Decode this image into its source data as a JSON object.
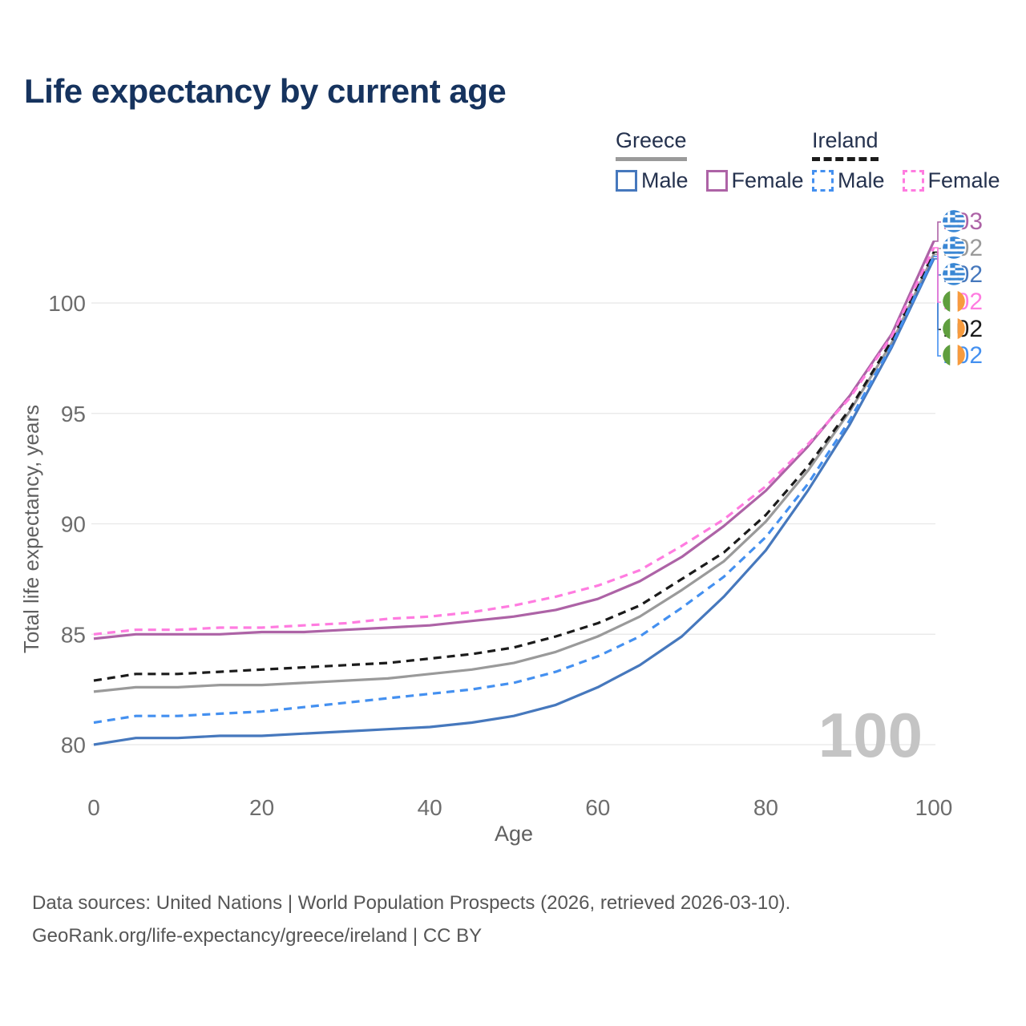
{
  "header": {
    "title": "Life expectancy by current age"
  },
  "legend": {
    "groups": [
      {
        "country": "Greece",
        "items": [
          {
            "label": "Male",
            "series": "Greece Male"
          },
          {
            "label": "Female",
            "series": "Greece Female"
          }
        ]
      },
      {
        "country": "Ireland",
        "items": [
          {
            "label": "Male",
            "series": "Ireland Male"
          },
          {
            "label": "Female",
            "series": "Ireland Female"
          }
        ]
      }
    ]
  },
  "chart_data": {
    "type": "line",
    "title": "Life expectancy by current age",
    "xlabel": "Age",
    "ylabel": "Total life expectancy, years",
    "x_ticks": [
      0,
      20,
      40,
      60,
      80,
      100
    ],
    "y_ticks": [
      80,
      85,
      90,
      95,
      100
    ],
    "xlim": [
      0,
      100
    ],
    "ylim": [
      80,
      103.5
    ],
    "grid": "horizontal",
    "gridline_color": "#e7e7e7",
    "axis_text_color": "#6d6d6d",
    "watermark_age": "100",
    "x": [
      0,
      5,
      10,
      15,
      20,
      25,
      30,
      35,
      40,
      45,
      50,
      55,
      60,
      65,
      70,
      75,
      80,
      85,
      90,
      95,
      100
    ],
    "series": [
      {
        "name": "Greece Total",
        "country": "Greece",
        "sex": "Total",
        "style": "solid",
        "color": "#9a9a9a",
        "end_label": "102",
        "label_row": 1,
        "values": [
          82.4,
          82.6,
          82.6,
          82.7,
          82.7,
          82.8,
          82.9,
          83.0,
          83.2,
          83.4,
          83.7,
          84.2,
          84.9,
          85.8,
          87.0,
          88.3,
          90.1,
          92.4,
          95.1,
          98.2,
          102.2
        ]
      },
      {
        "name": "Greece Male",
        "country": "Greece",
        "sex": "Male",
        "style": "solid",
        "color": "#4678bd",
        "end_label": "102",
        "label_row": 2,
        "values": [
          80.0,
          80.3,
          80.3,
          80.4,
          80.4,
          80.5,
          80.6,
          80.7,
          80.8,
          81.0,
          81.3,
          81.8,
          82.6,
          83.6,
          84.9,
          86.7,
          88.8,
          91.5,
          94.5,
          98.0,
          102.0
        ]
      },
      {
        "name": "Greece Female",
        "country": "Greece",
        "sex": "Female",
        "style": "solid",
        "color": "#ad63a6",
        "end_label": "103",
        "label_row": 0,
        "values": [
          84.8,
          85.0,
          85.0,
          85.0,
          85.1,
          85.1,
          85.2,
          85.3,
          85.4,
          85.6,
          85.8,
          86.1,
          86.6,
          87.4,
          88.5,
          89.9,
          91.5,
          93.5,
          95.8,
          98.6,
          102.8
        ]
      },
      {
        "name": "Ireland Total",
        "country": "Ireland",
        "sex": "Total",
        "style": "dashed",
        "color": "#1b1b1b",
        "end_label": "102",
        "label_row": 4,
        "values": [
          82.9,
          83.2,
          83.2,
          83.3,
          83.4,
          83.5,
          83.6,
          83.7,
          83.9,
          84.1,
          84.4,
          84.9,
          85.5,
          86.3,
          87.5,
          88.7,
          90.4,
          92.6,
          95.2,
          98.3,
          102.3
        ]
      },
      {
        "name": "Ireland Male",
        "country": "Ireland",
        "sex": "Male",
        "style": "dashed",
        "color": "#4490f0",
        "end_label": "102",
        "label_row": 5,
        "values": [
          81.0,
          81.3,
          81.3,
          81.4,
          81.5,
          81.7,
          81.9,
          82.1,
          82.3,
          82.5,
          82.8,
          83.3,
          84.0,
          84.9,
          86.2,
          87.6,
          89.4,
          91.8,
          94.7,
          98.1,
          102.1
        ]
      },
      {
        "name": "Ireland Female",
        "country": "Ireland",
        "sex": "Female",
        "style": "dashed",
        "color": "#ff7ce0",
        "end_label": "102",
        "label_row": 3,
        "values": [
          85.0,
          85.2,
          85.2,
          85.3,
          85.3,
          85.4,
          85.5,
          85.7,
          85.8,
          86.0,
          86.3,
          86.7,
          87.2,
          87.9,
          89.0,
          90.2,
          91.7,
          93.6,
          95.7,
          98.5,
          102.5
        ]
      }
    ],
    "flag_colors": {
      "greece_blue": "#3a87d4",
      "ireland_green": "#5f9e3e",
      "ireland_orange": "#f79b3e",
      "white": "#ffffff"
    }
  },
  "footer": {
    "line1": "Data sources: United Nations | World Population Prospects (2026, retrieved 2026-03-10).",
    "line2": "GeoRank.org/life-expectancy/greece/ireland | CC BY"
  }
}
